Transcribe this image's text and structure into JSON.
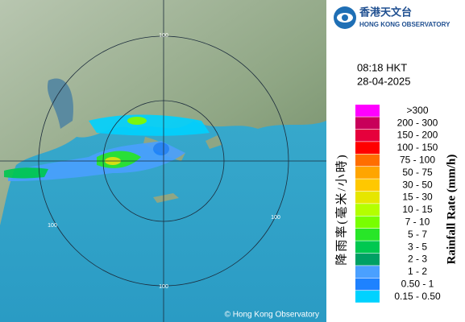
{
  "header": {
    "logo_zh": "香港天文台",
    "logo_en": "HONG KONG OBSERVATORY"
  },
  "timestamp": {
    "time": "08:18 HKT",
    "date": "28-04-2025"
  },
  "legend": {
    "title_en": "Rainfall Rate (mm/h)",
    "title_zh": "降雨率(毫米/小時)",
    "items": [
      {
        "label": ">300",
        "color": "#ff00ff"
      },
      {
        "label": "200 - 300",
        "color": "#c8005a"
      },
      {
        "label": "150 - 200",
        "color": "#e6003c"
      },
      {
        "label": "100 - 150",
        "color": "#ff0000"
      },
      {
        "label": "75 - 100",
        "color": "#ff6e00"
      },
      {
        "label": "50 - 75",
        "color": "#ffa500"
      },
      {
        "label": "30 - 50",
        "color": "#ffc800"
      },
      {
        "label": "15 - 30",
        "color": "#e6e600"
      },
      {
        "label": "10 - 15",
        "color": "#b4ff00"
      },
      {
        "label": "7 - 10",
        "color": "#78ff00"
      },
      {
        "label": "5 - 7",
        "color": "#28e628"
      },
      {
        "label": "3 - 5",
        "color": "#00c850"
      },
      {
        "label": "2 - 3",
        "color": "#00a064"
      },
      {
        "label": "1 - 2",
        "color": "#4aa0ff"
      },
      {
        "label": "0.50 - 1",
        "color": "#1e82ff"
      },
      {
        "label": "0.15 - 0.50",
        "color": "#00d2ff"
      }
    ]
  },
  "map": {
    "ring_labels": [
      "100",
      "100",
      "100",
      "100"
    ],
    "credit": "© Hong Kong Observatory"
  }
}
